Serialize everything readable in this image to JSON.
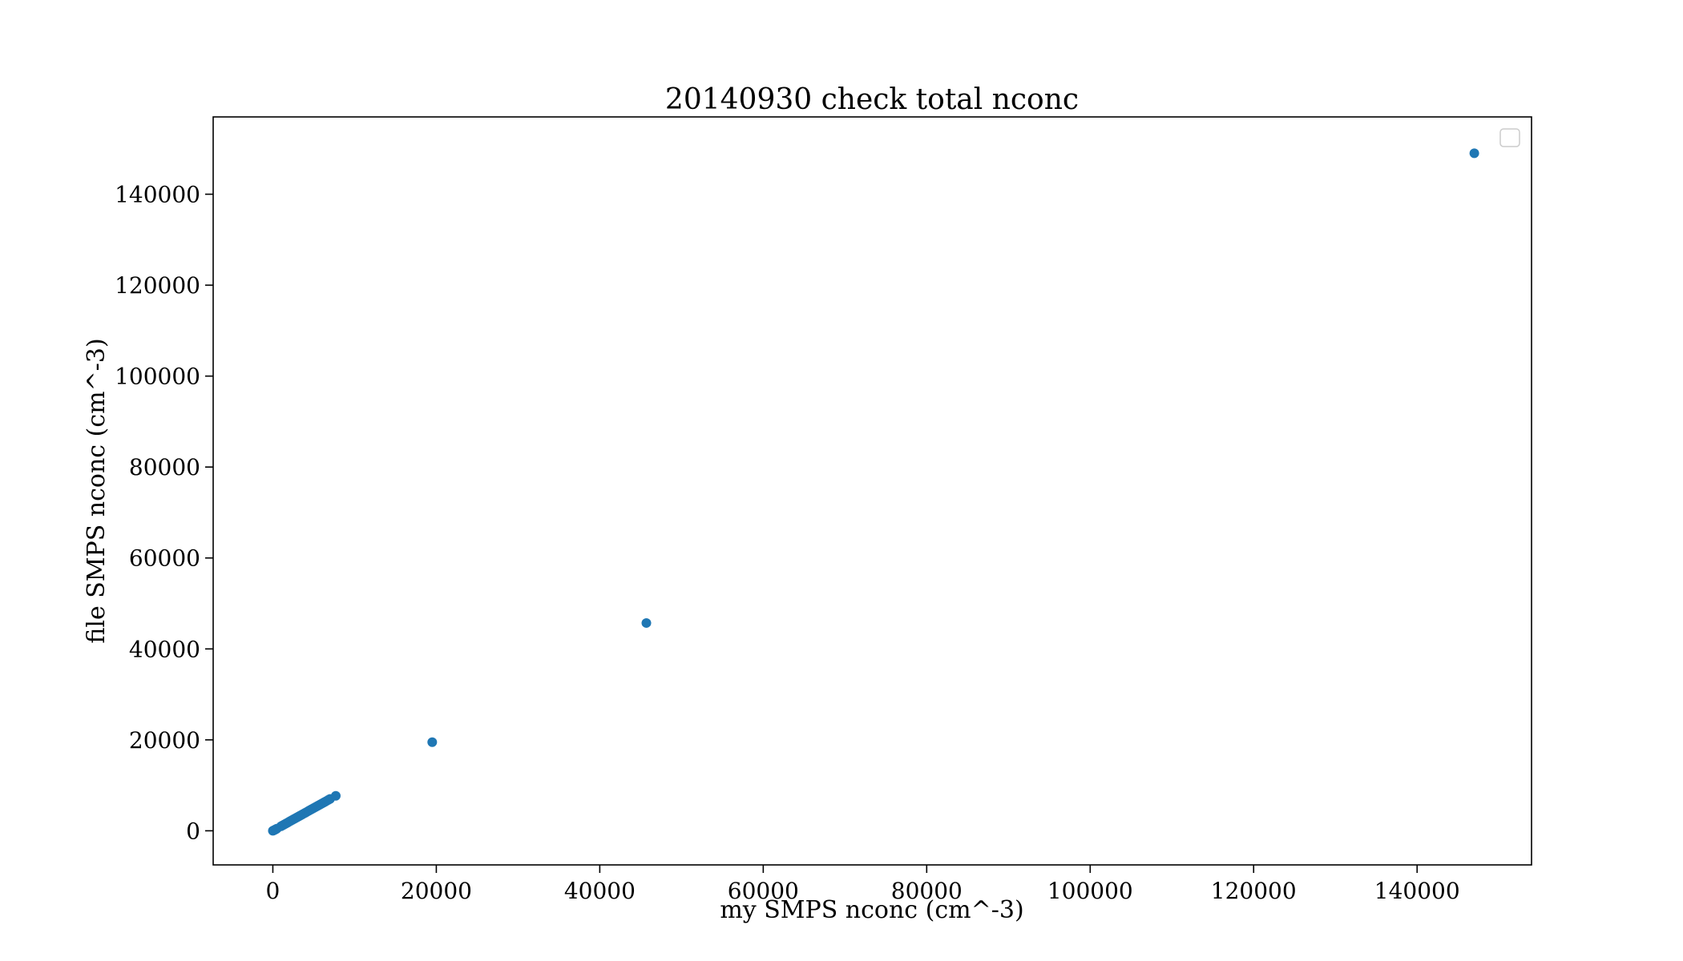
{
  "chart_data": {
    "type": "scatter",
    "title": "20140930 check total nconc",
    "xlabel": "my SMPS nconc (cm^-3)",
    "ylabel": "file SMPS nconc (cm^-3)",
    "xlim": [
      -7300,
      154000
    ],
    "ylim": [
      -7500,
      157000
    ],
    "xticks": [
      0,
      20000,
      40000,
      60000,
      80000,
      100000,
      120000,
      140000
    ],
    "yticks": [
      0,
      20000,
      40000,
      60000,
      80000,
      100000,
      120000,
      140000
    ],
    "grid": false,
    "legend": {
      "placement": "upper right",
      "entries": []
    },
    "series": [
      {
        "color": "#1f77b4",
        "points": [
          [
            0,
            0
          ],
          [
            100,
            90
          ],
          [
            200,
            180
          ],
          [
            300,
            280
          ],
          [
            400,
            380
          ],
          [
            500,
            480
          ],
          [
            1000,
            1000
          ],
          [
            1200,
            1200
          ],
          [
            1400,
            1400
          ],
          [
            1600,
            1600
          ],
          [
            1800,
            1800
          ],
          [
            2000,
            2000
          ],
          [
            2200,
            2200
          ],
          [
            2400,
            2400
          ],
          [
            2600,
            2600
          ],
          [
            2800,
            2800
          ],
          [
            3000,
            3000
          ],
          [
            3200,
            3200
          ],
          [
            3400,
            3400
          ],
          [
            3600,
            3600
          ],
          [
            3800,
            3800
          ],
          [
            4000,
            4000
          ],
          [
            4200,
            4200
          ],
          [
            4400,
            4400
          ],
          [
            4600,
            4600
          ],
          [
            4800,
            4800
          ],
          [
            5000,
            5000
          ],
          [
            5200,
            5200
          ],
          [
            5400,
            5400
          ],
          [
            5600,
            5600
          ],
          [
            5800,
            5800
          ],
          [
            6000,
            6000
          ],
          [
            6200,
            6200
          ],
          [
            6400,
            6400
          ],
          [
            6600,
            6600
          ],
          [
            6800,
            6800
          ],
          [
            7000,
            7000
          ],
          [
            7700,
            7700
          ],
          [
            19500,
            19500
          ],
          [
            45700,
            45700
          ],
          [
            147000,
            149000
          ]
        ]
      }
    ]
  }
}
